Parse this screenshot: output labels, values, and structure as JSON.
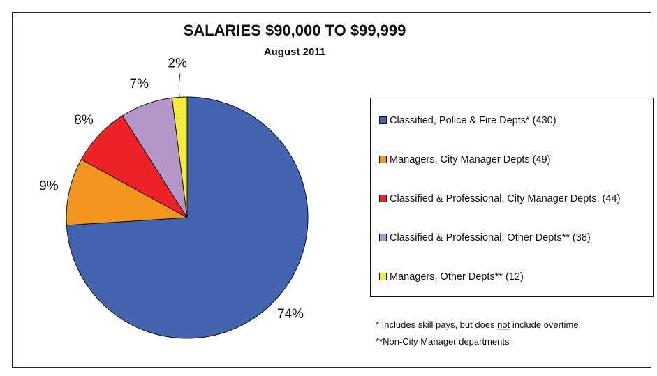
{
  "chart_data": {
    "type": "pie",
    "title": "SALARIES $90,000 TO $99,999",
    "subtitle": "August 2011",
    "categories": [
      "Classified, Police & Fire Depts* (430)",
      "Managers, City Manager Depts (49)",
      "Classified & Professional, City Manager Depts. (44)",
      "Classified & Professional, Other Depts** (38)",
      "Managers, Other Depts** (12)"
    ],
    "values": [
      74,
      9,
      8,
      7,
      2
    ],
    "value_labels": [
      "74%",
      "9%",
      "8%",
      "7%",
      "2%"
    ],
    "colors": [
      "#4263ae",
      "#f3951f",
      "#ec2227",
      "#b497c8",
      "#f2ec3b"
    ],
    "notes": [
      [
        "* Includes skill pays, but does ",
        "not",
        " include overtime."
      ],
      [
        "**Non-City Manager departments"
      ]
    ]
  }
}
